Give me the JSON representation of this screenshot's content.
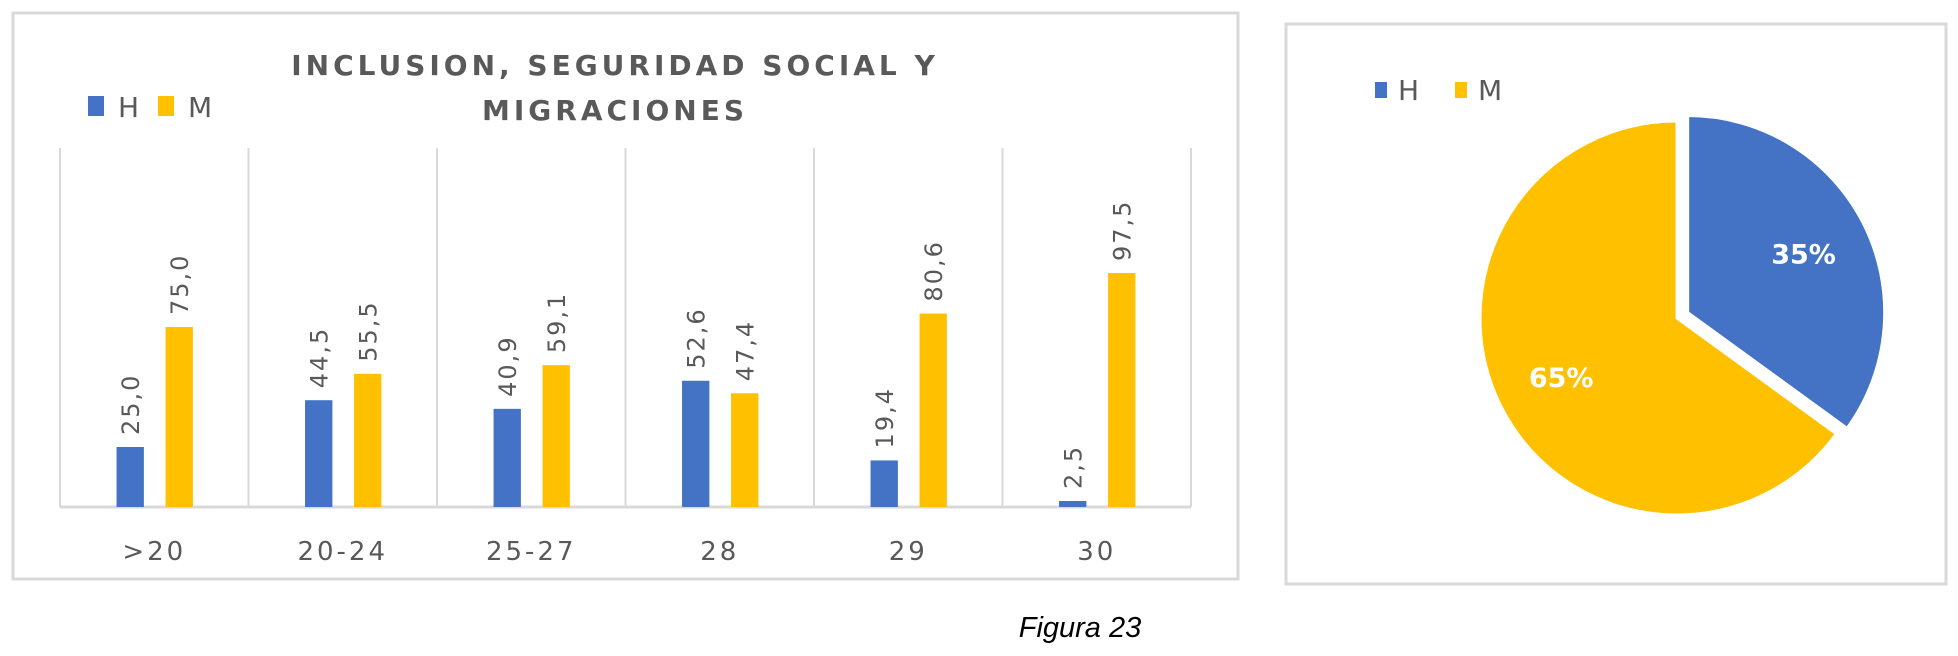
{
  "chart_data": [
    {
      "type": "bar",
      "title": "INCLUSION, SEGURIDAD SOCIAL Y MIGRACIONES",
      "title_lines": [
        "INCLUSION, SEGURIDAD SOCIAL Y",
        "MIGRACIONES"
      ],
      "categories": [
        ">20",
        "20-24",
        "25-27",
        "28",
        "29",
        "30"
      ],
      "series": [
        {
          "name": "H",
          "color": "#4472C4",
          "values": [
            25.0,
            44.5,
            40.9,
            52.6,
            19.4,
            2.5
          ],
          "labels": [
            "25,0",
            "44,5",
            "40,9",
            "52,6",
            "19,4",
            "2,5"
          ]
        },
        {
          "name": "M",
          "color": "#FFC000",
          "values": [
            75.0,
            55.5,
            59.1,
            47.4,
            80.6,
            97.5
          ],
          "labels": [
            "75,0",
            "55,5",
            "59,1",
            "47,4",
            "80,6",
            "97,5"
          ]
        }
      ],
      "ylim": [
        0,
        100
      ],
      "legend": "top-left",
      "grid": "vertical category separators"
    },
    {
      "type": "pie",
      "slices": [
        {
          "name": "H",
          "value": 35,
          "label": "35%",
          "color": "#4472C4",
          "exploded": true
        },
        {
          "name": "M",
          "value": 65,
          "label": "65%",
          "color": "#FFC000"
        }
      ],
      "legend": "top-left"
    }
  ],
  "caption": "Figura 23"
}
